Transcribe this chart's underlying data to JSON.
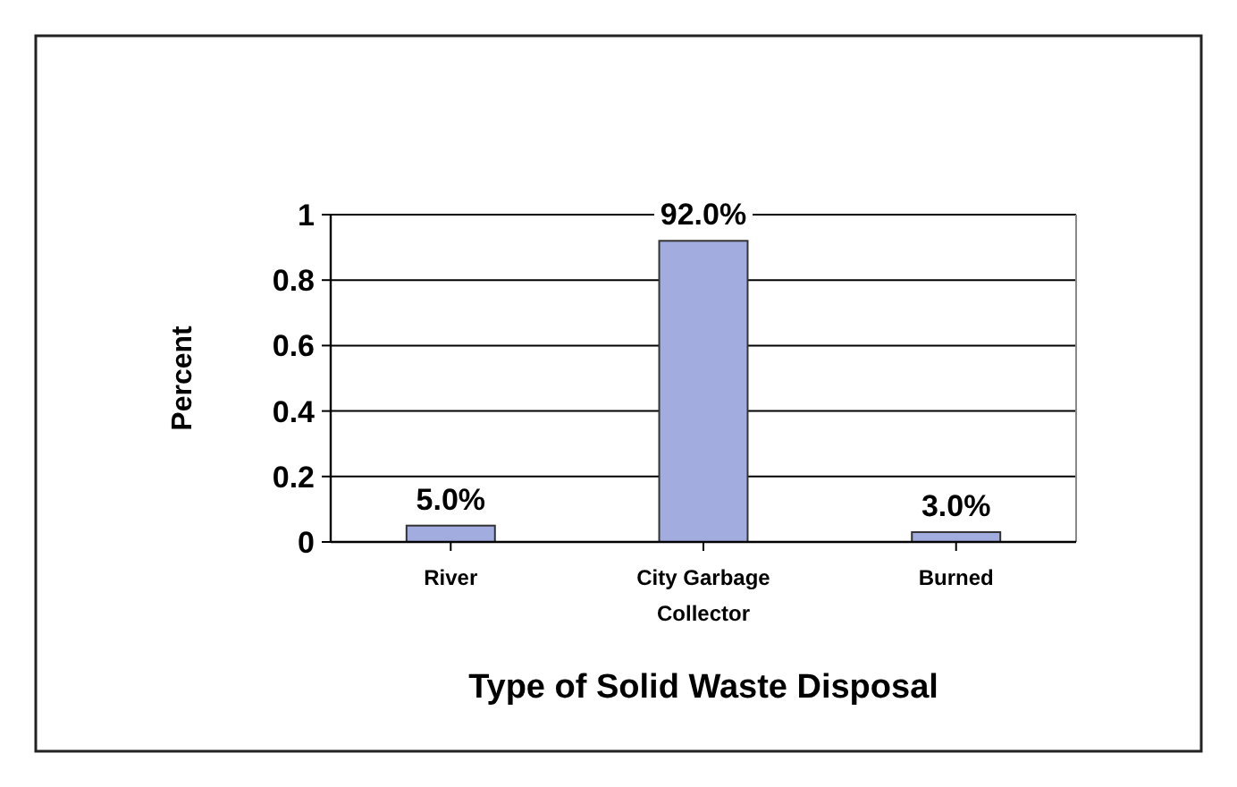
{
  "chart_data": {
    "type": "bar",
    "xlabel": "Type of Solid Waste Disposal",
    "ylabel": "Percent",
    "categories": [
      "River",
      "City Garbage Collector",
      "Burned"
    ],
    "values": [
      0.05,
      0.92,
      0.03
    ],
    "value_labels": [
      "5.0%",
      "92.0%",
      "3.0%"
    ],
    "color": "#a3acdf",
    "ylim": [
      0,
      1
    ],
    "yticks": [
      0,
      0.2,
      0.4,
      0.6,
      0.8,
      1
    ],
    "grid": "y"
  }
}
